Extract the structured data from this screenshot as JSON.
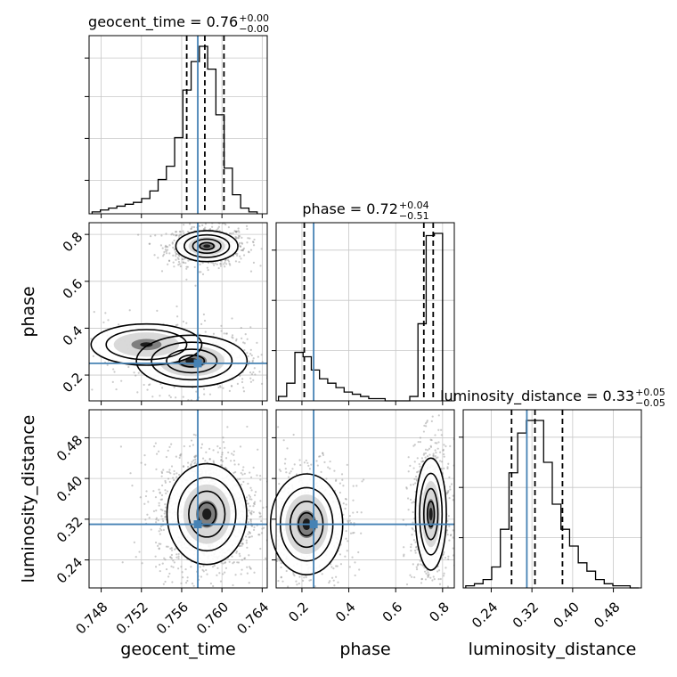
{
  "chart_data": {
    "type": "corner",
    "parameters": [
      "geocent_time",
      "phase",
      "luminosity_distance"
    ],
    "truths": {
      "geocent_time": 0.7576,
      "phase": 0.25,
      "luminosity_distance": 0.31
    },
    "axes": {
      "geocent_time": {
        "range": [
          0.7468,
          0.7645
        ],
        "ticks": [
          0.748,
          0.752,
          0.756,
          0.76,
          0.764
        ]
      },
      "phase": {
        "range": [
          0.09,
          0.85
        ],
        "ticks": [
          0.2,
          0.4,
          0.6,
          0.8
        ]
      },
      "luminosity_distance": {
        "range": [
          0.185,
          0.535
        ],
        "ticks": [
          0.24,
          0.32,
          0.4,
          0.48
        ]
      }
    },
    "titles": [
      {
        "param": "geocent_time",
        "median": "0.76",
        "plus": "+0.00",
        "minus": "−0.00"
      },
      {
        "param": "phase",
        "median": "0.72",
        "plus": "+0.04",
        "minus": "−0.51"
      },
      {
        "param": "luminosity_distance",
        "median": "0.33",
        "plus": "+0.05",
        "minus": "−0.05"
      }
    ],
    "histograms": [
      {
        "param": "geocent_time",
        "edges": [
          0.7471,
          0.74792,
          0.74874,
          0.74956,
          0.75038,
          0.7512,
          0.75202,
          0.75284,
          0.75366,
          0.75448,
          0.7553,
          0.75612,
          0.75694,
          0.75776,
          0.75858,
          0.7594,
          0.76022,
          0.76104,
          0.76186,
          0.76268,
          0.7635
        ],
        "counts": [
          1,
          2,
          3,
          4,
          5,
          6,
          8,
          12,
          18,
          25,
          40,
          65,
          80,
          88,
          76,
          52,
          24,
          10,
          3,
          1
        ],
        "quantiles": [
          0.7565,
          0.7583,
          0.7602
        ]
      },
      {
        "param": "phase",
        "edges": [
          0.1,
          0.135,
          0.17,
          0.205,
          0.24,
          0.275,
          0.31,
          0.345,
          0.38,
          0.415,
          0.45,
          0.485,
          0.52,
          0.555,
          0.59,
          0.625,
          0.66,
          0.695,
          0.73,
          0.765,
          0.8
        ],
        "counts": [
          2,
          8,
          22,
          20,
          14,
          10,
          8,
          6,
          4,
          3,
          2,
          1,
          1,
          0,
          0,
          0,
          2,
          35,
          75,
          76
        ],
        "quantiles": [
          0.21,
          0.72,
          0.76
        ]
      },
      {
        "param": "luminosity_distance",
        "edges": [
          0.19,
          0.207,
          0.224,
          0.241,
          0.258,
          0.275,
          0.292,
          0.309,
          0.326,
          0.343,
          0.36,
          0.377,
          0.394,
          0.411,
          0.428,
          0.445,
          0.462,
          0.479,
          0.496,
          0.513,
          0.53
        ],
        "counts": [
          1,
          2,
          4,
          10,
          28,
          55,
          74,
          80,
          80,
          60,
          40,
          28,
          20,
          12,
          8,
          4,
          2,
          1,
          1,
          0
        ],
        "quantiles": [
          0.28,
          0.326,
          0.38
        ]
      }
    ],
    "density_clusters": {
      "phase_vs_geocent_time": [
        {
          "x": 0.7585,
          "y": 0.75,
          "sx": 0.0014,
          "sy": 0.03,
          "weight": 0.55
        },
        {
          "x": 0.757,
          "y": 0.26,
          "sx": 0.0025,
          "sy": 0.05,
          "weight": 0.35
        },
        {
          "x": 0.7525,
          "y": 0.33,
          "sx": 0.0025,
          "sy": 0.04,
          "weight": 0.1
        }
      ],
      "luminosity_distance_vs_geocent_time": [
        {
          "x": 0.7585,
          "y": 0.33,
          "sx": 0.0018,
          "sy": 0.045,
          "weight": 1.0
        }
      ],
      "luminosity_distance_vs_phase": [
        {
          "x": 0.75,
          "y": 0.33,
          "sx": 0.03,
          "sy": 0.05,
          "weight": 0.55
        },
        {
          "x": 0.22,
          "y": 0.31,
          "sx": 0.07,
          "sy": 0.045,
          "weight": 0.45
        }
      ]
    },
    "colors": {
      "truth": "#4682b4",
      "hist": "#000000",
      "contour": "#000000",
      "scatter": "#8c8c8c",
      "grid": "#c8c8c8"
    },
    "grid": true
  }
}
